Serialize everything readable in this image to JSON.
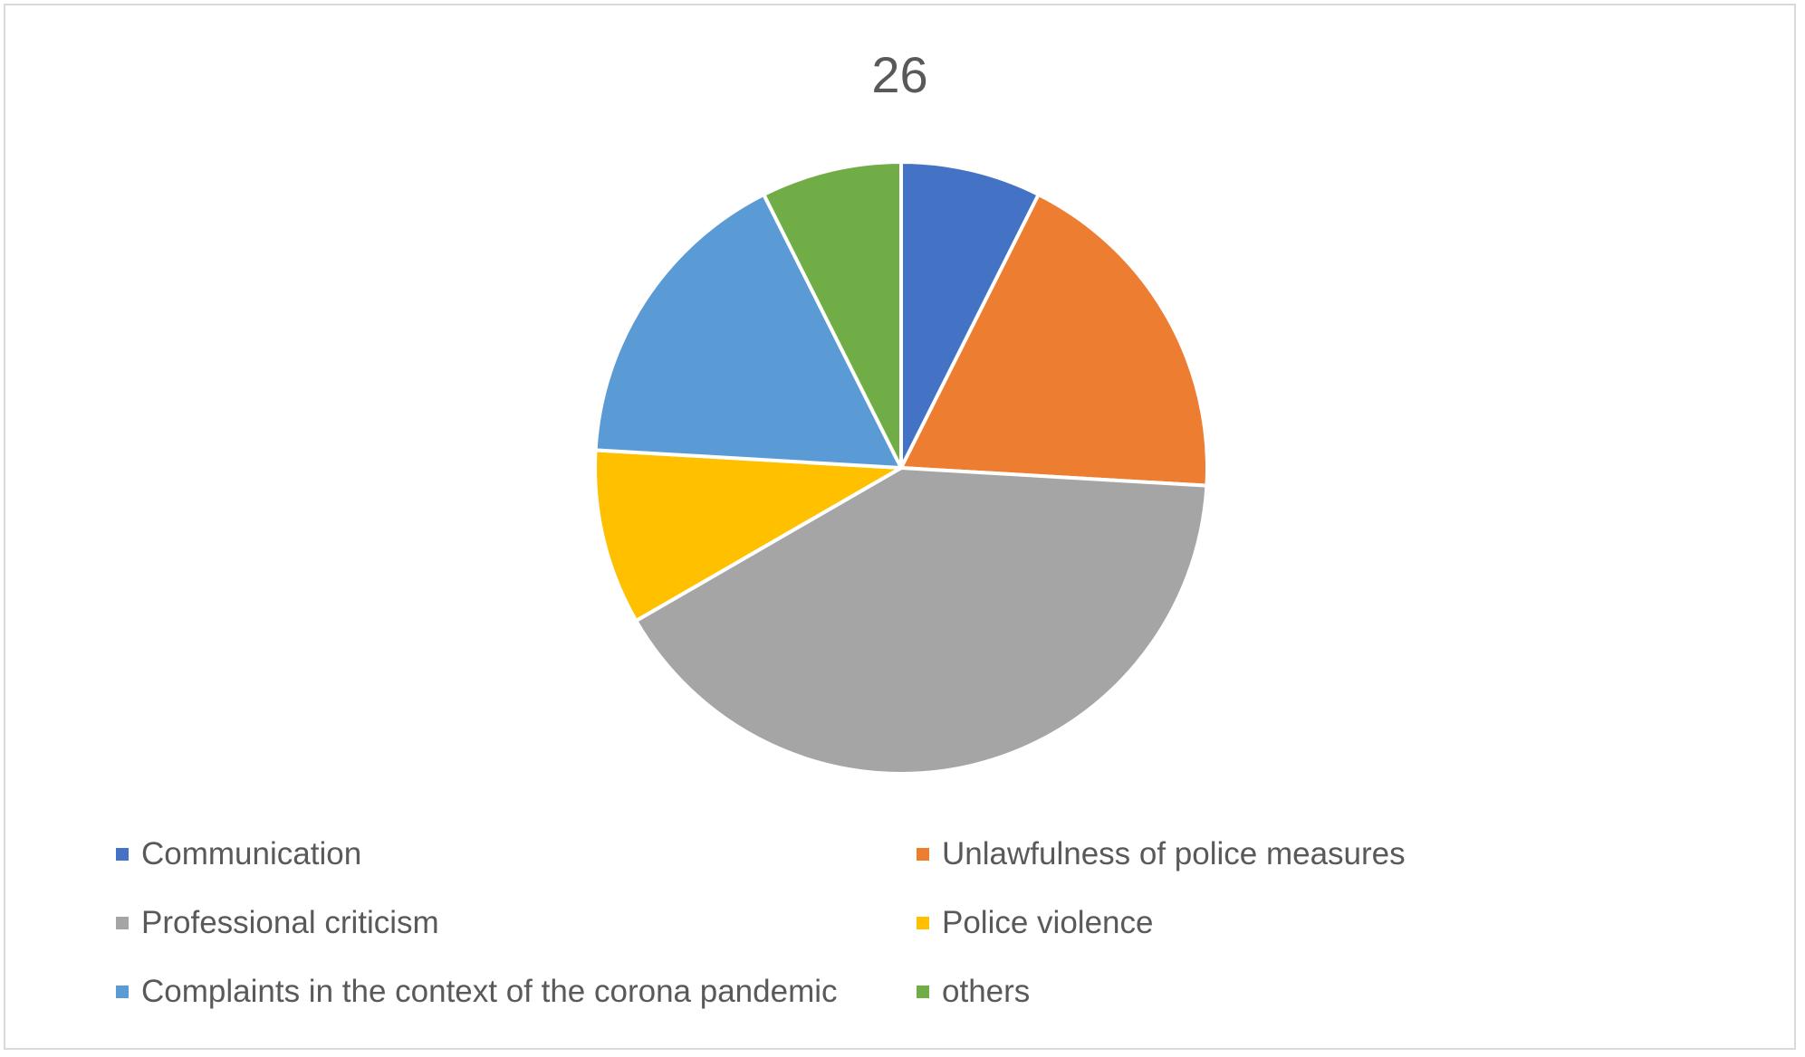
{
  "chart_data": {
    "type": "pie",
    "title": "26",
    "categories": [
      "Communication",
      "Unlawfulness of police measures",
      "Professional criticism",
      "Police violence",
      "Complaints in the context of the corona pandemic",
      "others"
    ],
    "values": [
      2,
      5,
      11,
      2.5,
      4.5,
      2
    ],
    "colors": [
      "#4472C4",
      "#ED7D31",
      "#A5A5A5",
      "#FFC000",
      "#5B9BD5",
      "#70AD47"
    ],
    "legend_position": "bottom"
  }
}
